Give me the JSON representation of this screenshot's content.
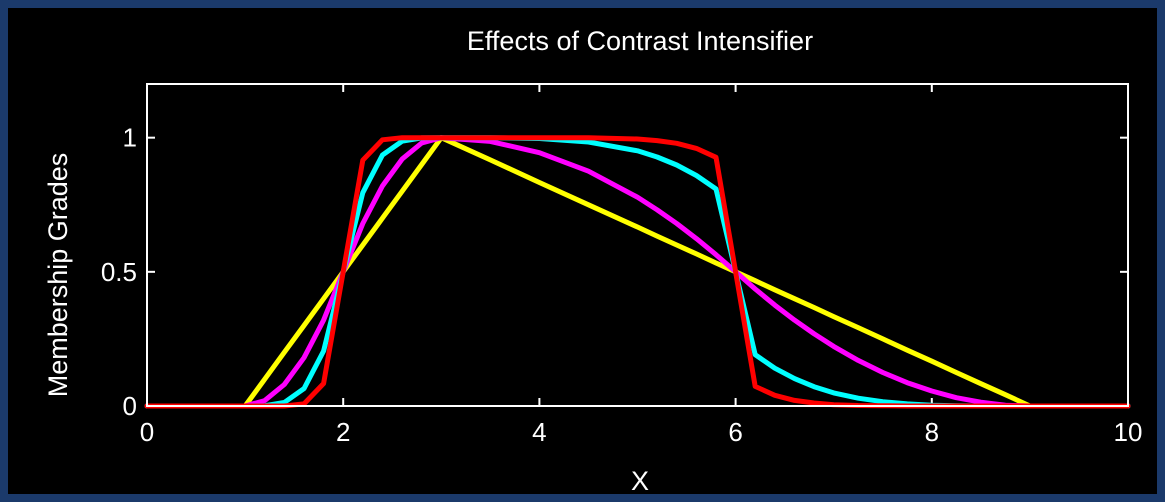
{
  "page": {
    "background": "#1b3a6b",
    "panel_background": "#000000"
  },
  "chart_data": {
    "type": "line",
    "title": "Effects of Contrast Intensifier",
    "xlabel": "X",
    "ylabel": "Membership Grades",
    "xlim": [
      0,
      10
    ],
    "ylim": [
      0,
      1.2
    ],
    "xticks": [
      0,
      2,
      4,
      6,
      8,
      10
    ],
    "yticks": [
      0,
      0.5,
      1
    ],
    "xtick_labels": [
      "0",
      "2",
      "4",
      "6",
      "8",
      "10"
    ],
    "ytick_labels": [
      "0",
      "0.5",
      "1"
    ],
    "grid": false,
    "axis_color": "#ffffff",
    "x": [
      0,
      0.5,
      1,
      1.2,
      1.4,
      1.6,
      1.8,
      2,
      2.2,
      2.4,
      2.6,
      2.8,
      3,
      3.5,
      4,
      4.5,
      5,
      5.2,
      5.4,
      5.6,
      5.8,
      6,
      6.2,
      6.4,
      6.6,
      6.8,
      7,
      7.25,
      7.5,
      7.75,
      8,
      8.25,
      8.5,
      8.75,
      9,
      9.5,
      10
    ],
    "series": [
      {
        "color": "#ffff00",
        "values": [
          0,
          0,
          0,
          0.1,
          0.2,
          0.3,
          0.4,
          0.5,
          0.6,
          0.7,
          0.8,
          0.9,
          1,
          0.917,
          0.833,
          0.75,
          0.667,
          0.633,
          0.6,
          0.567,
          0.533,
          0.5,
          0.467,
          0.433,
          0.4,
          0.367,
          0.333,
          0.292,
          0.25,
          0.208,
          0.167,
          0.125,
          0.083,
          0.042,
          0,
          0,
          0
        ]
      },
      {
        "color": "#ff00ff",
        "values": [
          0,
          0,
          0,
          0.02,
          0.08,
          0.18,
          0.32,
          0.5,
          0.68,
          0.82,
          0.92,
          0.98,
          1,
          0.986,
          0.944,
          0.875,
          0.778,
          0.731,
          0.68,
          0.624,
          0.564,
          0.5,
          0.436,
          0.376,
          0.32,
          0.269,
          0.222,
          0.17,
          0.125,
          0.087,
          0.056,
          0.031,
          0.014,
          0.003,
          0,
          0,
          0
        ]
      },
      {
        "color": "#00ffff",
        "values": [
          0,
          0,
          0,
          0.001,
          0.013,
          0.065,
          0.205,
          0.5,
          0.795,
          0.935,
          0.987,
          0.999,
          1,
          1,
          0.997,
          0.984,
          0.951,
          0.928,
          0.898,
          0.859,
          0.809,
          0.5,
          0.191,
          0.141,
          0.102,
          0.072,
          0.049,
          0.029,
          0.016,
          0.008,
          0.003,
          0.001,
          0,
          0,
          0,
          0,
          0
        ]
      },
      {
        "color": "#ff0000",
        "values": [
          0,
          0,
          0,
          0,
          0,
          0.008,
          0.084,
          0.5,
          0.916,
          0.992,
          1,
          1,
          1,
          1,
          1,
          1,
          0.995,
          0.989,
          0.979,
          0.96,
          0.927,
          0.5,
          0.073,
          0.04,
          0.021,
          0.011,
          0.005,
          0.002,
          0.001,
          0,
          0,
          0,
          0,
          0,
          0,
          0,
          0
        ]
      }
    ]
  }
}
